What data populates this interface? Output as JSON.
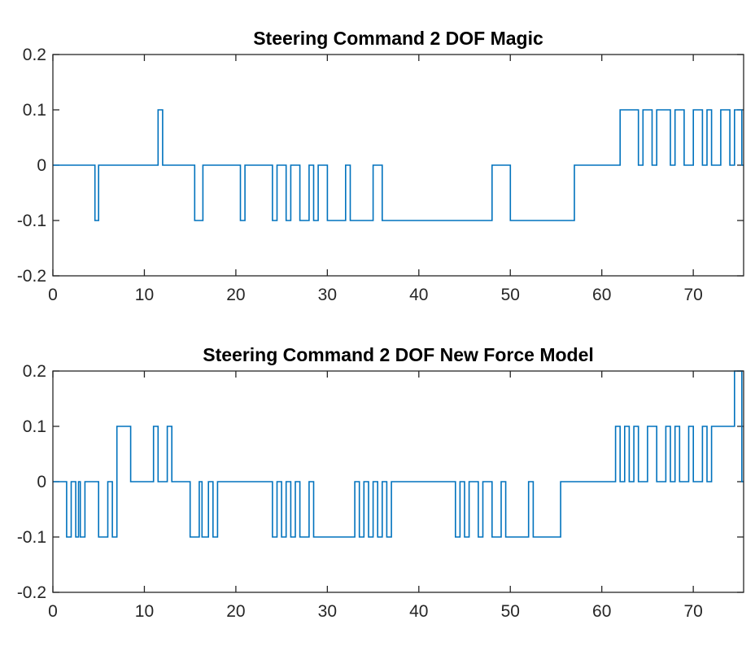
{
  "colors": {
    "line": "#0072BD",
    "axis": "#262626",
    "background": "#ffffff"
  },
  "chart_data": [
    {
      "type": "line",
      "title": "Steering Command 2 DOF Magic",
      "xlabel": "",
      "ylabel": "",
      "xlim": [
        0,
        75.5
      ],
      "ylim": [
        -0.2,
        0.2
      ],
      "xticks": [
        0,
        10,
        20,
        30,
        40,
        50,
        60,
        70
      ],
      "yticks": [
        -0.2,
        -0.1,
        0,
        0.1,
        0.2
      ],
      "xtick_labels": [
        "0",
        "10",
        "20",
        "30",
        "40",
        "50",
        "60",
        "70"
      ],
      "ytick_labels": [
        "-0.2",
        "-0.1",
        "0",
        "0.1",
        "0.2"
      ],
      "grid": false,
      "step": true,
      "series": [
        {
          "x": [
            0,
            4.6,
            5.0,
            11.5,
            12.0,
            15.5,
            16.4,
            20.5,
            21.0,
            24.0,
            24.5,
            25.5,
            26.0,
            27.0,
            28.0,
            28.5,
            29.0,
            30.0,
            32.0,
            32.5,
            35.0,
            36.0,
            48.0,
            50.0,
            57.0,
            62.0,
            64.0,
            64.5,
            65.5,
            66.0,
            67.5,
            68.0,
            69.0,
            70.0,
            71.0,
            71.5,
            72.0,
            73.0,
            74.0,
            74.5,
            75.3
          ],
          "y": [
            0,
            -0.1,
            0,
            0.1,
            0,
            -0.1,
            0,
            -0.1,
            0,
            -0.1,
            0,
            -0.1,
            0,
            -0.1,
            0,
            -0.1,
            0,
            -0.1,
            0,
            -0.1,
            0,
            -0.1,
            0,
            -0.1,
            0,
            0.1,
            0,
            0.1,
            0,
            0.1,
            0,
            0.1,
            0,
            0.1,
            0,
            0.1,
            0,
            0.1,
            0,
            0.1,
            0
          ]
        }
      ]
    },
    {
      "type": "line",
      "title": "Steering Command 2 DOF New Force Model",
      "xlabel": "",
      "ylabel": "",
      "xlim": [
        0,
        75.5
      ],
      "ylim": [
        -0.2,
        0.2
      ],
      "xticks": [
        0,
        10,
        20,
        30,
        40,
        50,
        60,
        70
      ],
      "yticks": [
        -0.2,
        -0.1,
        0,
        0.1,
        0.2
      ],
      "xtick_labels": [
        "0",
        "10",
        "20",
        "30",
        "40",
        "50",
        "60",
        "70"
      ],
      "ytick_labels": [
        "-0.2",
        "-0.1",
        "0",
        "0.1",
        "0.2"
      ],
      "grid": false,
      "step": true,
      "series": [
        {
          "x": [
            0,
            1.5,
            2.0,
            2.5,
            2.8,
            3.0,
            3.5,
            5.0,
            6.0,
            6.5,
            7.0,
            8.5,
            11.0,
            11.5,
            12.5,
            13.0,
            15.0,
            16.0,
            16.3,
            17.0,
            17.5,
            18.0,
            24.0,
            24.5,
            25.0,
            25.5,
            26.0,
            26.5,
            27.0,
            28.0,
            28.5,
            30.0,
            33.0,
            33.5,
            34.0,
            34.5,
            35.0,
            35.5,
            36.0,
            36.5,
            37.0,
            44.0,
            44.5,
            45.0,
            45.5,
            46.5,
            47.0,
            48.0,
            49.0,
            49.5,
            52.0,
            52.5,
            55.5,
            61.5,
            62.0,
            62.5,
            63.0,
            63.5,
            64.0,
            65.0,
            66.0,
            67.0,
            67.5,
            68.0,
            68.5,
            69.5,
            70.0,
            71.0,
            71.5,
            72.0,
            74.5,
            75.3
          ],
          "y": [
            0,
            -0.1,
            0,
            -0.1,
            0,
            -0.1,
            0,
            -0.1,
            0,
            -0.1,
            0.1,
            0,
            0.1,
            0,
            0.1,
            0,
            -0.1,
            0,
            -0.1,
            0,
            -0.1,
            0,
            -0.1,
            0,
            -0.1,
            0,
            -0.1,
            0,
            -0.1,
            0,
            -0.1,
            -0.1,
            0,
            -0.1,
            0,
            -0.1,
            0,
            -0.1,
            0,
            -0.1,
            0,
            -0.1,
            0,
            -0.1,
            0,
            -0.1,
            0,
            -0.1,
            0,
            -0.1,
            0,
            -0.1,
            0,
            0.1,
            0,
            0.1,
            0,
            0.1,
            0,
            0.1,
            0,
            0.1,
            0,
            0.1,
            0,
            0.1,
            0,
            0.1,
            0,
            0.1,
            0.2,
            0
          ]
        }
      ]
    }
  ]
}
